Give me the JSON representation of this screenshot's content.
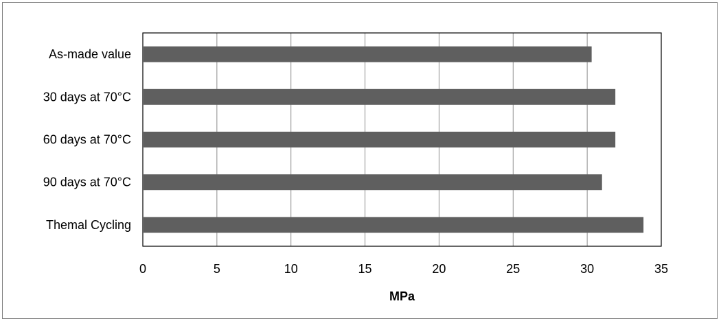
{
  "chart_data": {
    "type": "bar",
    "orientation": "horizontal",
    "categories": [
      "As-made value",
      "30 days at 70°C",
      "60 days at 70°C",
      "90 days at 70°C",
      "Themal Cycling"
    ],
    "values": [
      30.3,
      31.9,
      31.9,
      31.0,
      33.8
    ],
    "xlabel": "MPa",
    "ylabel": "",
    "xlim": [
      0,
      35
    ],
    "xticks": [
      0,
      5,
      10,
      15,
      20,
      25,
      30,
      35
    ],
    "xtick_labels": [
      "0",
      "5",
      "10",
      "15",
      "20",
      "25",
      "30",
      "35"
    ],
    "grid": "vertical",
    "legend": "none",
    "bar_color": "#5f5f5f",
    "grid_color": "#8c8c8c",
    "axis_color": "#000000"
  }
}
